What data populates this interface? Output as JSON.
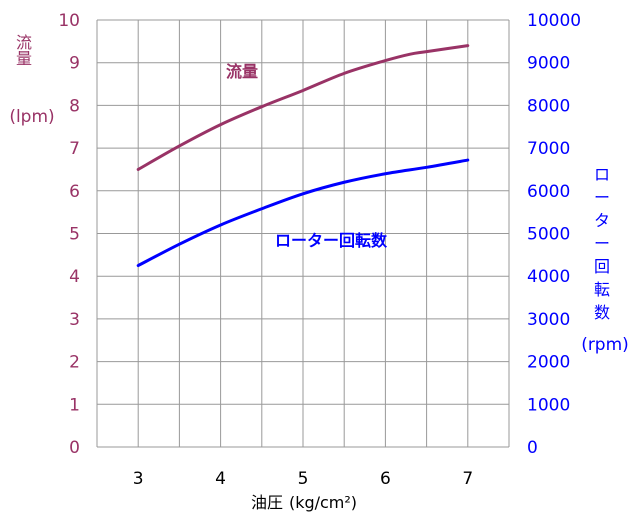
{
  "chart_data": {
    "type": "line",
    "title": "",
    "xlabel": "油圧",
    "xunit": "(kg/cm²)",
    "x_ticks": [
      "3",
      "4",
      "5",
      "6",
      "7"
    ],
    "xlim": [
      2.5,
      7.5
    ],
    "left_axis": {
      "label": "流量",
      "unit": "(lpm)",
      "ylim": [
        0,
        10
      ],
      "ticks": [
        "0",
        "1",
        "2",
        "3",
        "4",
        "5",
        "6",
        "7",
        "8",
        "9",
        "10"
      ],
      "color": "#993366"
    },
    "right_axis": {
      "label": "ローター回転数",
      "unit": "(rpm)",
      "ylim": [
        0,
        10000
      ],
      "ticks": [
        "0",
        "1000",
        "2000",
        "3000",
        "4000",
        "5000",
        "6000",
        "7000",
        "8000",
        "9000",
        "10000"
      ],
      "color": "#0000ff"
    },
    "grid": true,
    "series": [
      {
        "name": "流量",
        "axis": "left",
        "color": "#993366",
        "x": [
          3,
          3.5,
          4,
          4.5,
          5,
          5.5,
          6,
          6.3,
          6.5,
          7
        ],
        "values": [
          6.5,
          7.05,
          7.55,
          7.97,
          8.35,
          8.75,
          9.05,
          9.2,
          9.26,
          9.4
        ]
      },
      {
        "name": "ローター回転数",
        "axis": "right",
        "color": "#0000ff",
        "x": [
          3,
          3.5,
          4,
          4.5,
          5,
          5.5,
          6,
          6.5,
          7
        ],
        "values": [
          4250,
          4750,
          5200,
          5580,
          5930,
          6200,
          6400,
          6550,
          6720
        ]
      }
    ]
  }
}
